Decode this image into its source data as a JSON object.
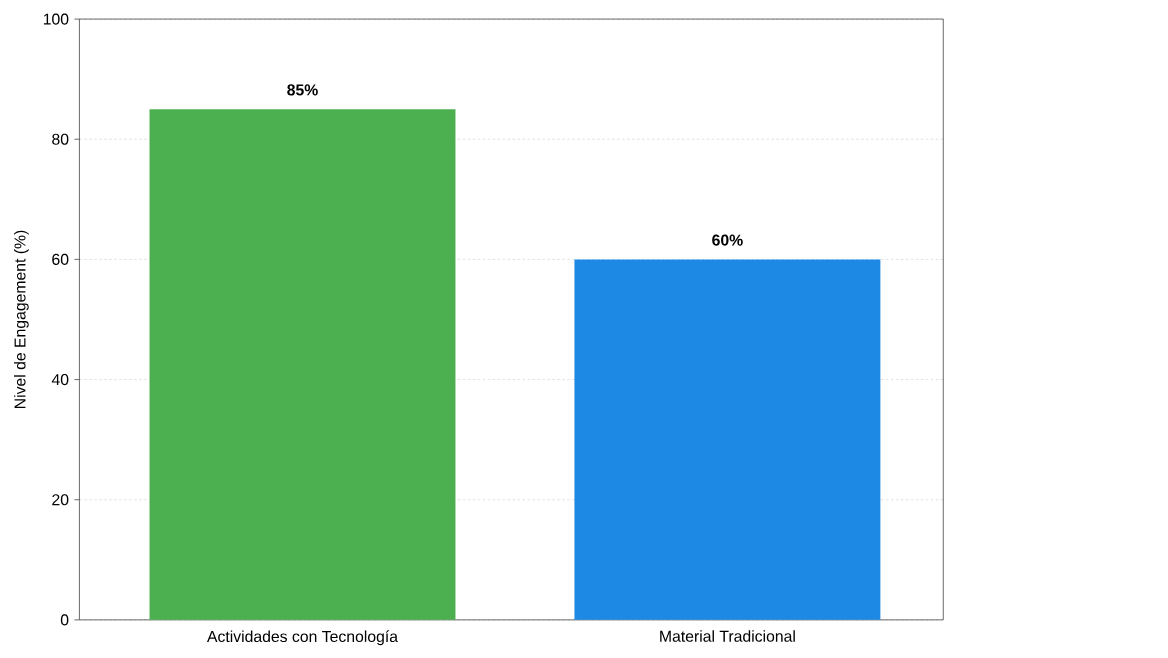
{
  "chart_data": {
    "type": "bar",
    "ylabel": "Nivel de Engagement (%)",
    "categories": [
      "Actividades con Tecnología",
      "Material Tradicional"
    ],
    "values": [
      85,
      60
    ],
    "colors": [
      "#4caf50",
      "#1e88e5"
    ],
    "value_labels": [
      "85%",
      "60%"
    ],
    "ylim": [
      0,
      100
    ],
    "yticks": [
      0,
      20,
      40,
      60,
      80,
      100
    ],
    "grid": "y"
  }
}
